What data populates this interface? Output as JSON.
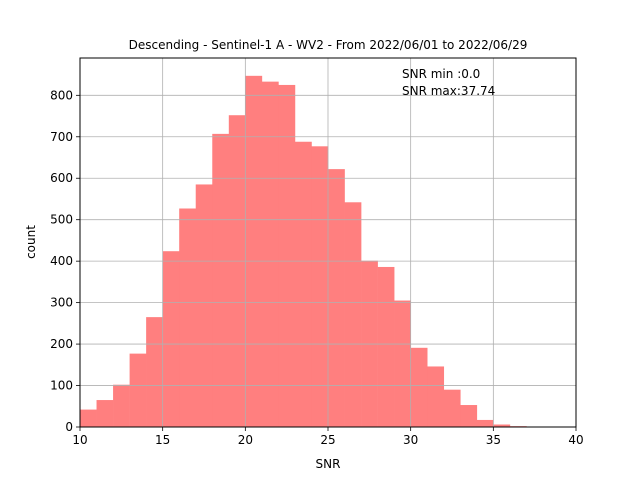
{
  "chart_data": {
    "type": "bar",
    "title": "Descending - Sentinel-1 A - WV2 - From 2022/06/01 to 2022/06/29",
    "xlabel": "SNR",
    "ylabel": "count",
    "xlim": [
      10,
      40
    ],
    "ylim": [
      0,
      890
    ],
    "bin_width": 1,
    "bin_edges": [
      10,
      11,
      12,
      13,
      14,
      15,
      16,
      17,
      18,
      19,
      20,
      21,
      22,
      23,
      24,
      25,
      26,
      27,
      28,
      29,
      30,
      31,
      32,
      33,
      34,
      35,
      36,
      37,
      38
    ],
    "values": [
      42,
      65,
      102,
      177,
      265,
      424,
      527,
      585,
      707,
      752,
      847,
      833,
      825,
      688,
      677,
      622,
      542,
      401,
      386,
      305,
      191,
      146,
      90,
      53,
      17,
      6,
      2,
      1
    ],
    "bar_color": "#ff7f7f",
    "grid": true,
    "xticks": [
      "10",
      "15",
      "20",
      "25",
      "30",
      "35",
      "40"
    ],
    "yticks": [
      "0",
      "100",
      "200",
      "300",
      "400",
      "500",
      "600",
      "700",
      "800"
    ],
    "annotations": [
      "SNR min :0.0",
      "SNR max:37.74"
    ]
  }
}
